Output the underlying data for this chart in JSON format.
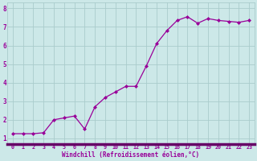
{
  "x": [
    0,
    1,
    2,
    3,
    4,
    5,
    6,
    7,
    8,
    9,
    10,
    11,
    12,
    13,
    14,
    15,
    16,
    17,
    18,
    19,
    20,
    21,
    22,
    23
  ],
  "y": [
    1.25,
    1.25,
    1.25,
    1.3,
    2.0,
    2.1,
    2.2,
    1.5,
    2.7,
    3.2,
    3.5,
    3.8,
    3.8,
    4.9,
    6.1,
    6.8,
    7.35,
    7.55,
    7.2,
    7.45,
    7.35,
    7.3,
    7.25,
    7.35
  ],
  "line_color": "#990099",
  "marker": "D",
  "marker_size": 2.0,
  "bg_color": "#cce8e8",
  "grid_color": "#aacccc",
  "xlabel": "Windchill (Refroidissement éolien,°C)",
  "xlabel_color": "#990099",
  "tick_color": "#990099",
  "spine_bar_color": "#660066",
  "ylim": [
    0.7,
    8.3
  ],
  "xlim": [
    -0.5,
    23.5
  ],
  "yticks": [
    1,
    2,
    3,
    4,
    5,
    6,
    7,
    8
  ],
  "xticks": [
    0,
    1,
    2,
    3,
    4,
    5,
    6,
    7,
    8,
    9,
    10,
    11,
    12,
    13,
    14,
    15,
    16,
    17,
    18,
    19,
    20,
    21,
    22,
    23
  ],
  "xtick_labels": [
    "0",
    "1",
    "2",
    "3",
    "4",
    "5",
    "6",
    "7",
    "8",
    "9",
    "10",
    "11",
    "12",
    "13",
    "14",
    "15",
    "16",
    "17",
    "18",
    "19",
    "20",
    "21",
    "22",
    "23"
  ]
}
